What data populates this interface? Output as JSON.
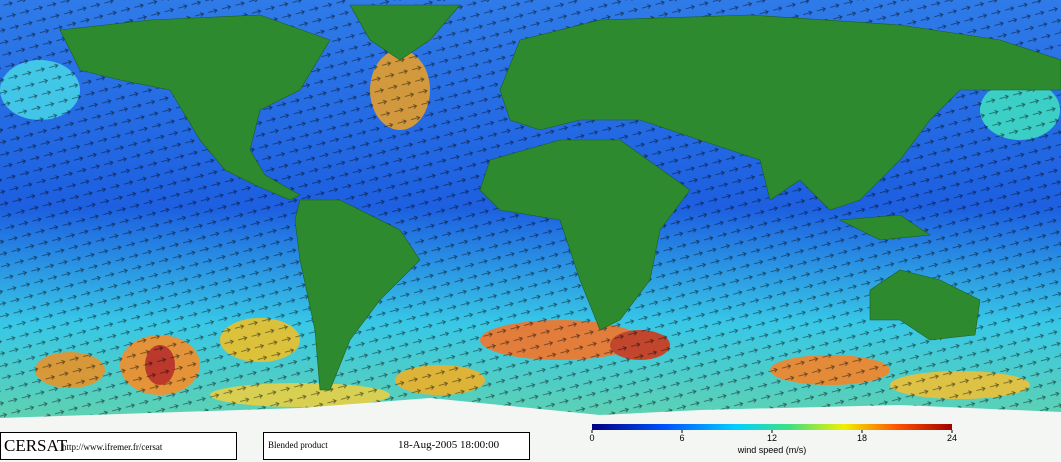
{
  "footer": {
    "logo": "CERSAT",
    "url": "http://www.ifremer.fr/cersat",
    "product": "Blended product",
    "datetime": "18-Aug-2005 18:00:00"
  },
  "colorbar": {
    "label": "wind speed (m/s)",
    "lim": [
      0,
      24
    ],
    "ticks": [
      0,
      6,
      12,
      18,
      24
    ]
  }
}
